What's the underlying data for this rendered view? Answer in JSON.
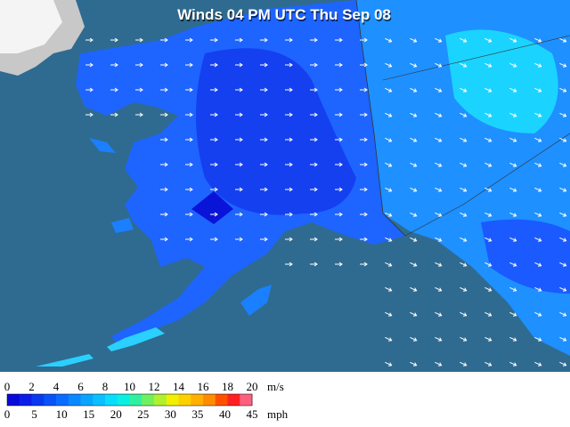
{
  "title": "Winds 04 PM UTC Thu Sep 08",
  "legend": {
    "ms_ticks": [
      0,
      2,
      4,
      6,
      8,
      10,
      12,
      14,
      16,
      18,
      20
    ],
    "ms_unit": "m/s",
    "mph_ticks": [
      0,
      5,
      10,
      15,
      20,
      25,
      30,
      35,
      40,
      45
    ],
    "mph_unit": "mph",
    "colors": [
      "#0a0ad8",
      "#0a1ee8",
      "#0a38f0",
      "#0a52f8",
      "#0a6cff",
      "#0a88ff",
      "#0aa4ff",
      "#0ac0ff",
      "#0adcff",
      "#0af0e0",
      "#30f0a0",
      "#70f060",
      "#b0f030",
      "#f0f000",
      "#ffd000",
      "#ffb000",
      "#ff8c00",
      "#ff5000",
      "#ff2020",
      "#ff6080"
    ]
  }
}
